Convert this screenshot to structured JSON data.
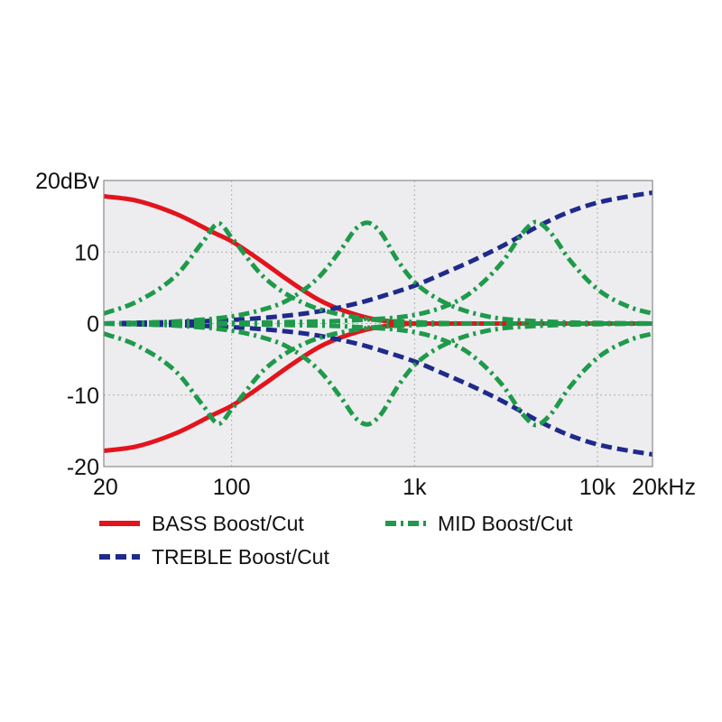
{
  "chart_data": {
    "type": "line",
    "title": "",
    "xlabel": "",
    "ylabel": "",
    "x_scale": "log",
    "xlim": [
      20,
      20000
    ],
    "ylim": [
      -20,
      20
    ],
    "grid": true,
    "legend_position": "bottom",
    "x_ticks": [
      {
        "value": 20,
        "label": "20"
      },
      {
        "value": 100,
        "label": "100"
      },
      {
        "value": 1000,
        "label": "1k"
      },
      {
        "value": 10000,
        "label": "10k"
      },
      {
        "value": 20000,
        "label": "20kHz"
      }
    ],
    "y_ticks": [
      {
        "value": 20,
        "label": "20dBv"
      },
      {
        "value": 10,
        "label": "10"
      },
      {
        "value": 0,
        "label": "0"
      },
      {
        "value": -10,
        "label": "-10"
      },
      {
        "value": -20,
        "label": "-20"
      }
    ],
    "series": [
      {
        "name": "BASS Boost/Cut",
        "color": "#e3141c",
        "style": "solid",
        "x": [
          20,
          30,
          50,
          80,
          100,
          150,
          200,
          300,
          400,
          600,
          800,
          1000,
          2000,
          20000
        ],
        "y": [
          17.8,
          17.2,
          15.3,
          12.7,
          11.5,
          8.5,
          6.2,
          3.3,
          1.9,
          0.6,
          0.2,
          0.0,
          0.0,
          0.0
        ]
      },
      {
        "name": "BASS Boost/Cut",
        "color": "#e3141c",
        "style": "solid",
        "x": [
          20,
          30,
          50,
          80,
          100,
          150,
          200,
          300,
          400,
          600,
          800,
          1000,
          2000,
          20000
        ],
        "y": [
          -17.8,
          -17.2,
          -15.3,
          -12.7,
          -11.5,
          -8.5,
          -6.2,
          -3.3,
          -1.9,
          -0.6,
          -0.2,
          0.0,
          0.0,
          0.0
        ]
      },
      {
        "name": "TREBLE Boost/Cut",
        "color": "#1f2a8a",
        "style": "dashed",
        "x": [
          20,
          100,
          200,
          300,
          500,
          700,
          1000,
          1500,
          2000,
          3000,
          5000,
          7000,
          10000,
          15000,
          20000
        ],
        "y": [
          0.0,
          0.5,
          1.1,
          1.7,
          2.9,
          4.0,
          5.3,
          7.2,
          8.6,
          10.8,
          13.9,
          15.6,
          16.9,
          17.8,
          18.3
        ]
      },
      {
        "name": "TREBLE Boost/Cut",
        "color": "#1f2a8a",
        "style": "dashed",
        "x": [
          20,
          100,
          200,
          300,
          500,
          700,
          1000,
          1500,
          2000,
          3000,
          5000,
          7000,
          10000,
          15000,
          20000
        ],
        "y": [
          0.0,
          -0.5,
          -1.1,
          -1.7,
          -2.9,
          -4.0,
          -5.3,
          -7.2,
          -8.6,
          -10.8,
          -13.9,
          -15.6,
          -16.9,
          -17.8,
          -18.3
        ]
      },
      {
        "name": "MID Boost/Cut",
        "color": "#1f9a4a",
        "style": "dash-dot",
        "x": [
          20,
          30,
          50,
          70,
          85,
          100,
          150,
          250,
          500,
          1000,
          3000,
          20000
        ],
        "y": [
          1.4,
          3.0,
          6.8,
          11.5,
          14.0,
          12.0,
          6.5,
          2.8,
          0.8,
          0.2,
          0.0,
          0.0
        ]
      },
      {
        "name": "MID Boost/Cut",
        "color": "#1f9a4a",
        "style": "dash-dot",
        "x": [
          20,
          30,
          50,
          70,
          85,
          100,
          150,
          250,
          500,
          1000,
          3000,
          20000
        ],
        "y": [
          -1.4,
          -3.0,
          -6.8,
          -11.5,
          -14.0,
          -12.0,
          -6.5,
          -2.8,
          -0.8,
          -0.2,
          0.0,
          0.0
        ]
      },
      {
        "name": "MID Boost/Cut",
        "color": "#1f9a4a",
        "style": "dash-dot",
        "x": [
          20,
          50,
          100,
          150,
          200,
          300,
          400,
          480,
          550,
          650,
          800,
          1000,
          1500,
          2500,
          5000,
          20000
        ],
        "y": [
          0.0,
          0.3,
          1.0,
          2.0,
          3.2,
          6.5,
          10.5,
          13.3,
          14.1,
          12.8,
          9.0,
          5.8,
          2.8,
          1.0,
          0.3,
          0.0
        ]
      },
      {
        "name": "MID Boost/Cut",
        "color": "#1f9a4a",
        "style": "dash-dot",
        "x": [
          20,
          50,
          100,
          150,
          200,
          300,
          400,
          480,
          550,
          650,
          800,
          1000,
          1500,
          2500,
          5000,
          20000
        ],
        "y": [
          0.0,
          -0.3,
          -1.0,
          -2.0,
          -3.2,
          -6.5,
          -10.5,
          -13.3,
          -14.1,
          -12.8,
          -9.0,
          -5.8,
          -2.8,
          -1.0,
          -0.3,
          0.0
        ]
      },
      {
        "name": "MID Boost/Cut",
        "color": "#1f9a4a",
        "style": "dash-dot",
        "x": [
          20,
          200,
          500,
          1000,
          1500,
          2000,
          3000,
          4000,
          4600,
          5500,
          7000,
          10000,
          15000,
          20000
        ],
        "y": [
          0.0,
          0.2,
          0.5,
          1.2,
          2.5,
          4.2,
          8.5,
          13.0,
          14.2,
          12.8,
          9.0,
          4.8,
          2.3,
          1.4
        ]
      },
      {
        "name": "MID Boost/Cut",
        "color": "#1f9a4a",
        "style": "dash-dot",
        "x": [
          20,
          200,
          500,
          1000,
          1500,
          2000,
          3000,
          4000,
          4600,
          5500,
          7000,
          10000,
          15000,
          20000
        ],
        "y": [
          0.0,
          -0.2,
          -0.5,
          -1.2,
          -2.5,
          -4.2,
          -8.5,
          -13.0,
          -14.2,
          -12.8,
          -9.0,
          -4.8,
          -2.3,
          -1.4
        ]
      }
    ],
    "legend": [
      {
        "label": "BASS Boost/Cut",
        "color": "#e3141c",
        "style": "solid"
      },
      {
        "label": "MID Boost/Cut",
        "color": "#1f9a4a",
        "style": "dash-dot"
      },
      {
        "label": "TREBLE Boost/Cut",
        "color": "#1f2a8a",
        "style": "dashed"
      }
    ]
  }
}
